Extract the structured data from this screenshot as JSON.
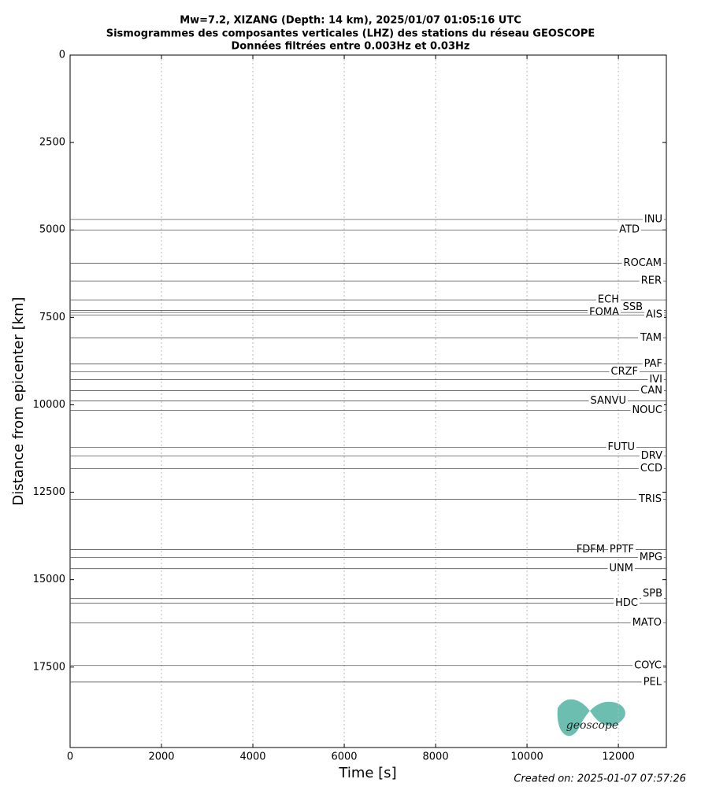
{
  "chart_data": {
    "type": "seismogram",
    "title": [
      "Mw=7.2, XIZANG (Depth: 14 km), 2025/01/07 01:05:16 UTC",
      "Sismogrammes des composantes verticales (LHZ) des stations du réseau GEOSCOPE",
      "Données filtrées entre 0.003Hz et 0.03Hz"
    ],
    "xlabel": "Time [s]",
    "ylabel": "Distance from epicenter [km]",
    "xlim": [
      0,
      13050
    ],
    "xticks": [
      0,
      2000,
      4000,
      6000,
      8000,
      10000,
      12000
    ],
    "ylim": [
      0,
      19800
    ],
    "yticks": [
      0,
      2500,
      5000,
      7500,
      10000,
      12500,
      15000,
      17500
    ],
    "y_inverted": true,
    "grid": true,
    "color": "#555555",
    "stations": [
      "INU",
      "ATD",
      "ROCAM",
      "RER",
      "ECH",
      "SSB",
      "FOMA",
      "AIS",
      "TAM",
      "PAF",
      "CRZF",
      "IVI",
      "CAN",
      "SANVU",
      "NOUC",
      "FUTU",
      "DRV",
      "CCD",
      "TRIS",
      "FDFM",
      "PPTF",
      "MPG",
      "UNM",
      "SPB",
      "HDC",
      "MATO",
      "COYC",
      "PEL"
    ],
    "distances": [
      4700,
      5000,
      5950,
      6460,
      7000,
      7300,
      7360,
      7430,
      8085,
      8830,
      9054,
      9280,
      9595,
      9887,
      10158,
      11216,
      11464,
      11824,
      12703,
      14144,
      14144,
      14369,
      14685,
      15541,
      15676,
      16239,
      17455,
      17928
    ],
    "created": "Created on: 2025-01-07 07:57:26",
    "logo": "geoscope"
  }
}
